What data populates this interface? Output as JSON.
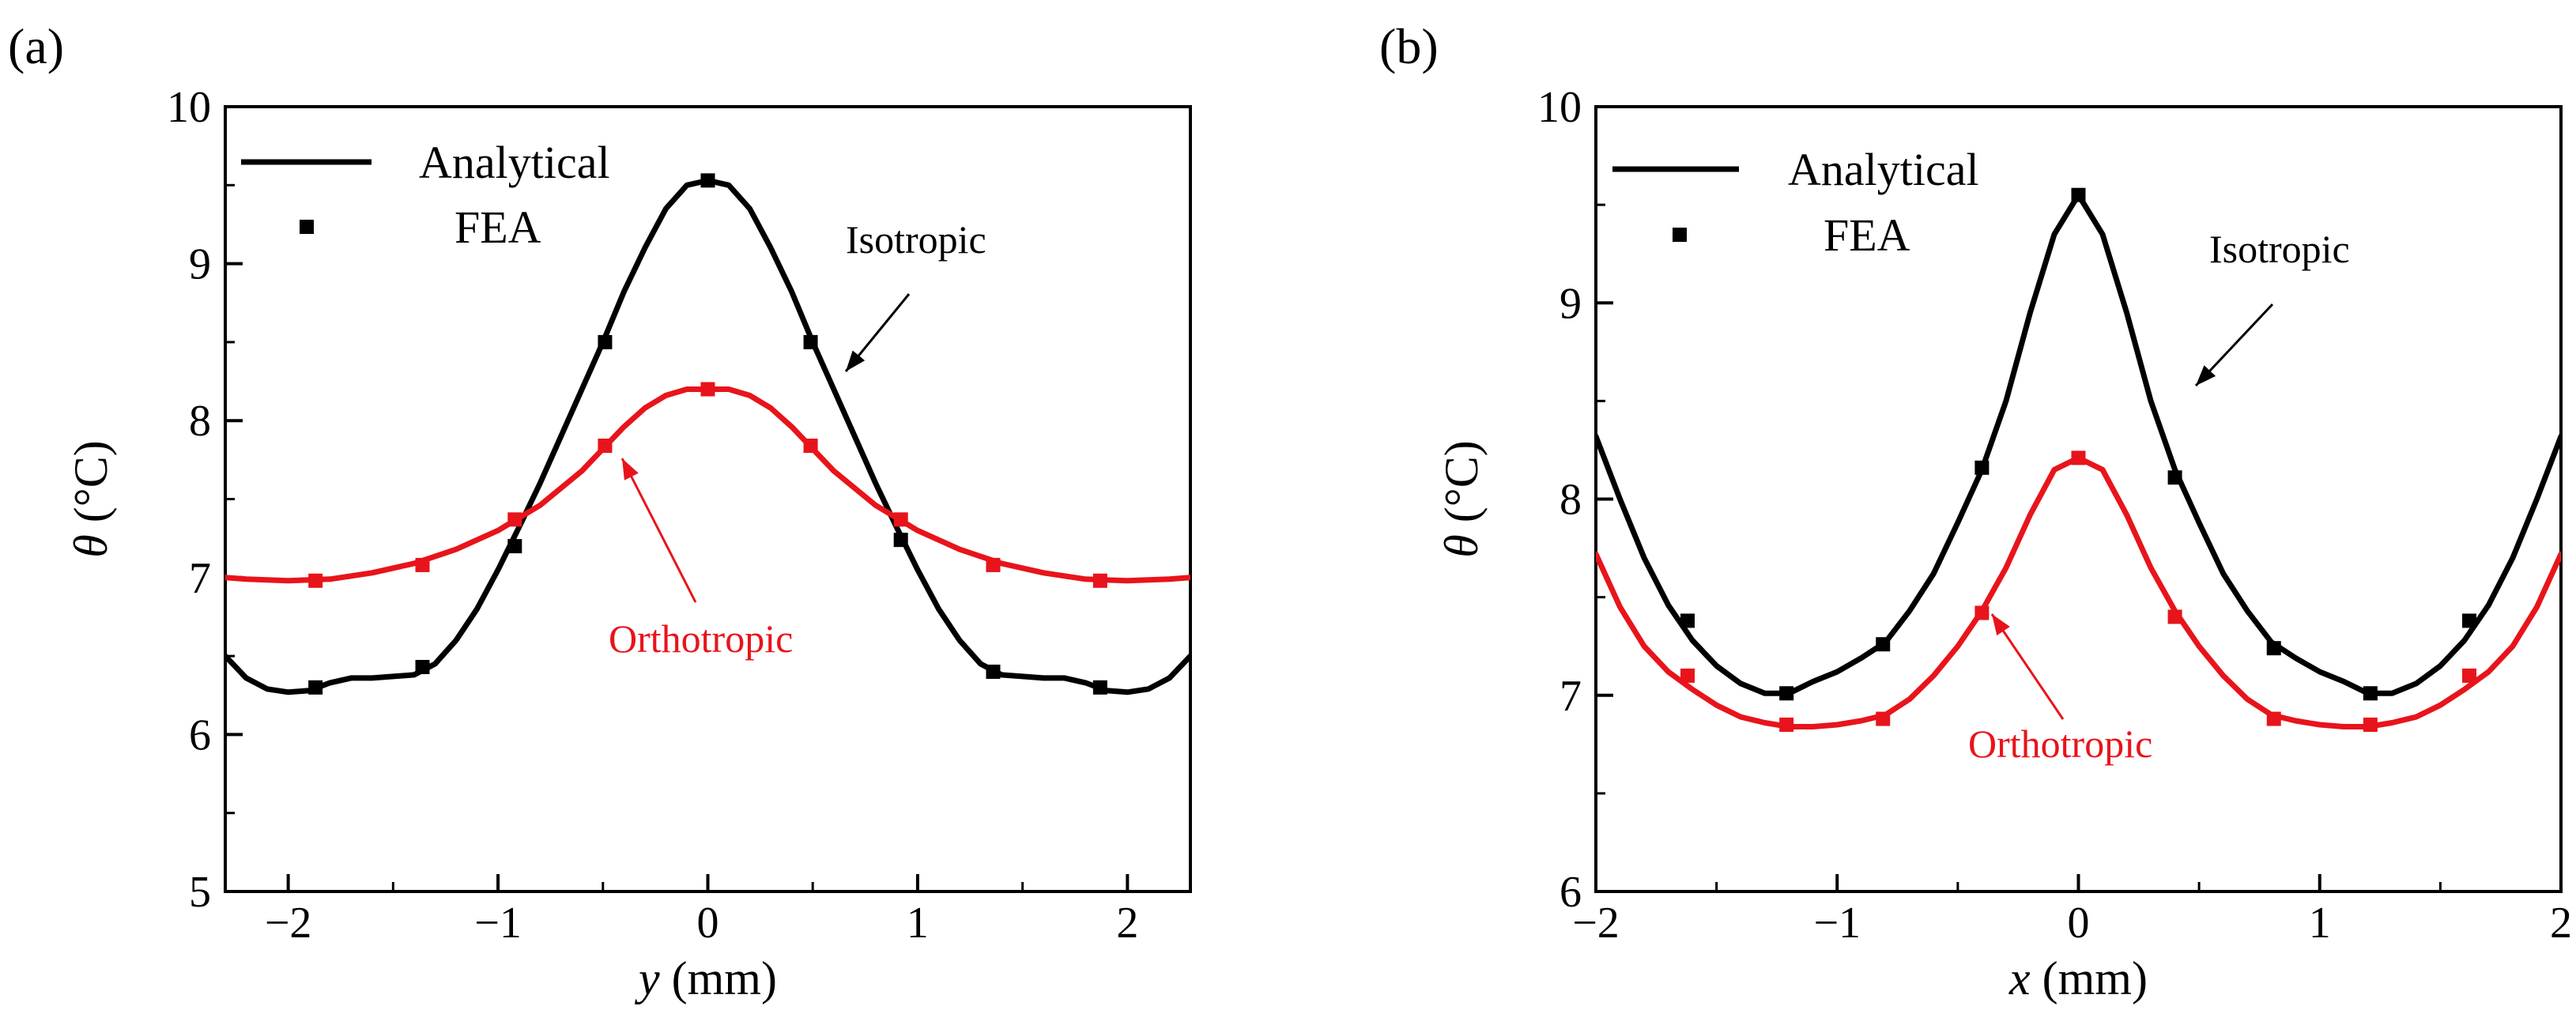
{
  "chart_data": [
    {
      "panel": "(a)",
      "type": "line",
      "xlabel_var": "y",
      "xlabel_unit": " (mm)",
      "ylabel_var": "θ",
      "ylabel_unit": " (°C)",
      "xlim": [
        -2.3,
        2.3
      ],
      "ylim": [
        5,
        10
      ],
      "xticks": [
        -2,
        -1,
        0,
        1,
        2
      ],
      "xtick_labels": [
        "−2",
        "−1",
        "0",
        "1",
        "2"
      ],
      "yticks": [
        5,
        6,
        7,
        8,
        9,
        10
      ],
      "ytick_labels": [
        "5",
        "6",
        "7",
        "8",
        "9",
        "10"
      ],
      "legend": {
        "line_label": "Analytical",
        "marker_label": "FEA",
        "placement": "top-left"
      },
      "annotations": [
        {
          "text": "Isotropic",
          "color": "#000000"
        },
        {
          "text": "Orthotropic",
          "color": "#e8141b"
        }
      ],
      "series": [
        {
          "name": "Isotropic",
          "color": "#000000",
          "analytical": {
            "x": [
              -2.3,
              -2.2,
              -2.1,
              -2.0,
              -1.9,
              -1.8,
              -1.7,
              -1.6,
              -1.5,
              -1.4,
              -1.3,
              -1.2,
              -1.1,
              -1.0,
              -0.9,
              -0.8,
              -0.7,
              -0.6,
              -0.5,
              -0.4,
              -0.3,
              -0.2,
              -0.1,
              0.0,
              0.1,
              0.2,
              0.3,
              0.4,
              0.5,
              0.6,
              0.7,
              0.8,
              0.9,
              1.0,
              1.1,
              1.2,
              1.3,
              1.4,
              1.5,
              1.6,
              1.7,
              1.8,
              1.9,
              2.0,
              2.1,
              2.2,
              2.3
            ],
            "y": [
              6.5,
              6.36,
              6.29,
              6.27,
              6.28,
              6.33,
              6.36,
              6.36,
              6.37,
              6.38,
              6.45,
              6.6,
              6.8,
              7.05,
              7.32,
              7.6,
              7.9,
              8.2,
              8.5,
              8.82,
              9.1,
              9.35,
              9.5,
              9.53,
              9.5,
              9.35,
              9.1,
              8.82,
              8.5,
              8.2,
              7.9,
              7.6,
              7.32,
              7.05,
              6.8,
              6.6,
              6.45,
              6.38,
              6.37,
              6.36,
              6.36,
              6.33,
              6.28,
              6.27,
              6.29,
              6.36,
              6.5
            ]
          },
          "fea": {
            "x": [
              -1.87,
              -1.36,
              -0.92,
              -0.49,
              0.0,
              0.49,
              0.92,
              1.36,
              1.87
            ],
            "y": [
              6.3,
              6.43,
              7.2,
              8.5,
              9.53,
              8.5,
              7.24,
              6.4,
              6.3
            ]
          }
        },
        {
          "name": "Orthotropic",
          "color": "#e8141b",
          "analytical": {
            "x": [
              -2.3,
              -2.2,
              -2.0,
              -1.8,
              -1.6,
              -1.4,
              -1.2,
              -1.0,
              -0.8,
              -0.6,
              -0.5,
              -0.4,
              -0.3,
              -0.2,
              -0.1,
              0.0,
              0.1,
              0.2,
              0.3,
              0.4,
              0.5,
              0.6,
              0.8,
              1.0,
              1.2,
              1.4,
              1.6,
              1.8,
              2.0,
              2.2,
              2.3
            ],
            "y": [
              7.0,
              6.99,
              6.98,
              6.99,
              7.03,
              7.09,
              7.18,
              7.3,
              7.46,
              7.68,
              7.82,
              7.96,
              8.08,
              8.16,
              8.2,
              8.2,
              8.2,
              8.16,
              8.08,
              7.96,
              7.82,
              7.68,
              7.46,
              7.3,
              7.18,
              7.09,
              7.03,
              6.99,
              6.98,
              6.99,
              7.0
            ]
          },
          "fea": {
            "x": [
              -1.87,
              -1.36,
              -0.92,
              -0.49,
              0.0,
              0.49,
              0.92,
              1.36,
              1.87
            ],
            "y": [
              6.98,
              7.08,
              7.37,
              7.84,
              8.2,
              7.84,
              7.37,
              7.08,
              6.98
            ]
          }
        }
      ]
    },
    {
      "panel": "(b)",
      "type": "line",
      "xlabel_var": "x",
      "xlabel_unit": " (mm)",
      "ylabel_var": "θ",
      "ylabel_unit": " (°C)",
      "xlim": [
        -2,
        2
      ],
      "ylim": [
        6,
        10
      ],
      "xticks": [
        -2,
        -1,
        0,
        1,
        2
      ],
      "xtick_labels": [
        "−2",
        "−1",
        "0",
        "1",
        "2"
      ],
      "yticks": [
        6,
        7,
        8,
        9,
        10
      ],
      "ytick_labels": [
        "6",
        "7",
        "8",
        "9",
        "10"
      ],
      "legend": {
        "line_label": "Analytical",
        "marker_label": "FEA",
        "placement": "top-left"
      },
      "annotations": [
        {
          "text": "Isotropic",
          "color": "#000000"
        },
        {
          "text": "Orthotropic",
          "color": "#e8141b"
        }
      ],
      "series": [
        {
          "name": "Isotropic",
          "color": "#000000",
          "analytical": {
            "x": [
              -2.0,
              -1.9,
              -1.8,
              -1.7,
              -1.6,
              -1.5,
              -1.4,
              -1.3,
              -1.2,
              -1.1,
              -1.0,
              -0.9,
              -0.8,
              -0.7,
              -0.6,
              -0.5,
              -0.4,
              -0.3,
              -0.2,
              -0.1,
              0.0,
              0.1,
              0.2,
              0.3,
              0.4,
              0.5,
              0.6,
              0.7,
              0.8,
              0.9,
              1.0,
              1.1,
              1.2,
              1.3,
              1.4,
              1.5,
              1.6,
              1.7,
              1.8,
              1.9,
              2.0
            ],
            "y": [
              8.32,
              8.0,
              7.7,
              7.46,
              7.28,
              7.15,
              7.06,
              7.01,
              7.01,
              7.07,
              7.12,
              7.19,
              7.27,
              7.43,
              7.62,
              7.88,
              8.15,
              8.5,
              8.95,
              9.35,
              9.55,
              9.35,
              8.95,
              8.5,
              8.15,
              7.88,
              7.62,
              7.43,
              7.27,
              7.19,
              7.12,
              7.07,
              7.01,
              7.01,
              7.06,
              7.15,
              7.28,
              7.46,
              7.7,
              8.0,
              8.32
            ]
          },
          "fea": {
            "x": [
              -1.62,
              -1.21,
              -0.81,
              -0.4,
              0.0,
              0.4,
              0.81,
              1.21,
              1.62
            ],
            "y": [
              7.38,
              7.01,
              7.26,
              8.16,
              9.55,
              8.11,
              7.24,
              7.01,
              7.38
            ]
          }
        },
        {
          "name": "Orthotropic",
          "color": "#e8141b",
          "analytical": {
            "x": [
              -2.0,
              -1.9,
              -1.8,
              -1.7,
              -1.6,
              -1.5,
              -1.4,
              -1.3,
              -1.2,
              -1.1,
              -1.0,
              -0.9,
              -0.8,
              -0.7,
              -0.6,
              -0.5,
              -0.4,
              -0.3,
              -0.2,
              -0.1,
              0.0,
              0.1,
              0.2,
              0.3,
              0.4,
              0.5,
              0.6,
              0.7,
              0.8,
              0.9,
              1.0,
              1.1,
              1.2,
              1.3,
              1.4,
              1.5,
              1.6,
              1.7,
              1.8,
              1.9,
              2.0
            ],
            "y": [
              7.72,
              7.45,
              7.25,
              7.12,
              7.03,
              6.95,
              6.89,
              6.86,
              6.84,
              6.84,
              6.85,
              6.87,
              6.9,
              6.98,
              7.1,
              7.25,
              7.43,
              7.65,
              7.92,
              8.15,
              8.21,
              8.15,
              7.92,
              7.65,
              7.43,
              7.25,
              7.1,
              6.98,
              6.9,
              6.87,
              6.85,
              6.84,
              6.84,
              6.86,
              6.89,
              6.95,
              7.03,
              7.12,
              7.25,
              7.45,
              7.72
            ]
          },
          "fea": {
            "x": [
              -1.62,
              -1.21,
              -0.81,
              -0.4,
              0.0,
              0.4,
              0.81,
              1.21,
              1.62
            ],
            "y": [
              7.1,
              6.85,
              6.88,
              7.42,
              8.21,
              7.4,
              6.88,
              6.85,
              7.1
            ]
          }
        }
      ]
    }
  ]
}
